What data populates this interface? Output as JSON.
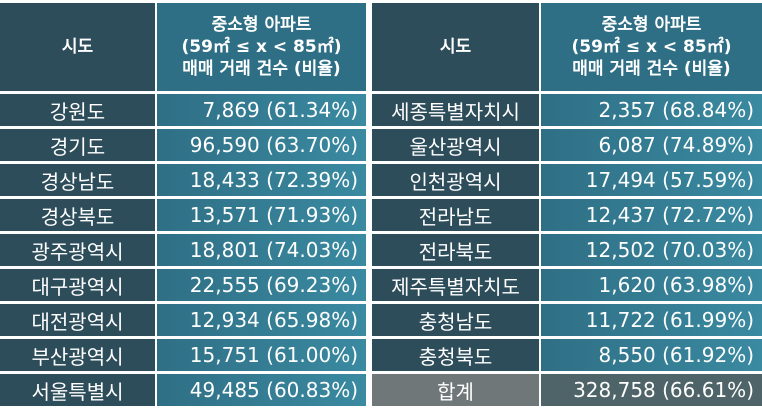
{
  "header": {
    "region_label": "시도",
    "value_line1": "중소형 아파트",
    "value_line2": "(59㎡ ≤ x < 85㎡)",
    "value_line3": "매매 거래 건수 (비율)"
  },
  "left_rows": [
    {
      "region": "강원도",
      "value": "7,869 (61.34%)"
    },
    {
      "region": "경기도",
      "value": "96,590 (63.70%)"
    },
    {
      "region": "경상남도",
      "value": "18,433 (72.39%)"
    },
    {
      "region": "경상북도",
      "value": "13,571 (71.93%)"
    },
    {
      "region": "광주광역시",
      "value": "18,801 (74.03%)"
    },
    {
      "region": "대구광역시",
      "value": "22,555 (69.23%)"
    },
    {
      "region": "대전광역시",
      "value": "12,934 (65.98%)"
    },
    {
      "region": "부산광역시",
      "value": "15,751 (61.00%)"
    },
    {
      "region": "서울특별시",
      "value": "49,485 (60.83%)"
    }
  ],
  "right_rows": [
    {
      "region": "세종특별자치시",
      "value": "2,357 (68.84%)"
    },
    {
      "region": "울산광역시",
      "value": "6,087 (74.89%)"
    },
    {
      "region": "인천광역시",
      "value": "17,494 (57.59%)"
    },
    {
      "region": "전라남도",
      "value": "12,437 (72.72%)"
    },
    {
      "region": "전라북도",
      "value": "12,502 (70.03%)"
    },
    {
      "region": "제주특별자치도",
      "value": "1,620 (63.98%)"
    },
    {
      "region": "충청남도",
      "value": "11,722 (61.99%)"
    },
    {
      "region": "충청북도",
      "value": "8,550 (61.92%)"
    },
    {
      "region": "합계",
      "value": "328,758 (66.61%)"
    }
  ]
}
